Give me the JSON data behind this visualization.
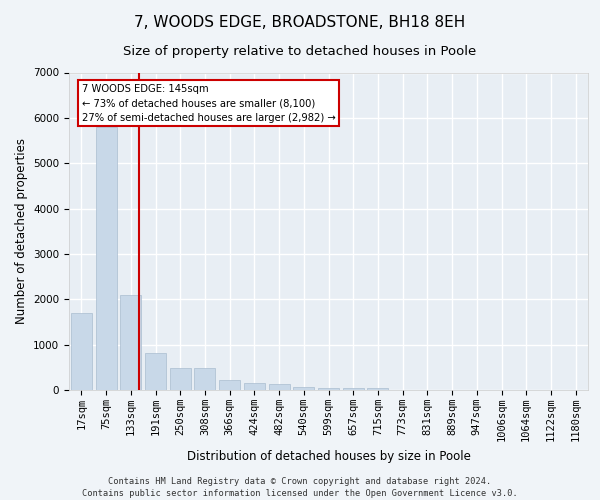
{
  "title": "7, WOODS EDGE, BROADSTONE, BH18 8EH",
  "subtitle": "Size of property relative to detached houses in Poole",
  "xlabel": "Distribution of detached houses by size in Poole",
  "ylabel": "Number of detached properties",
  "footnote1": "Contains HM Land Registry data © Crown copyright and database right 2024.",
  "footnote2": "Contains public sector information licensed under the Open Government Licence v3.0.",
  "annotation_line1": "7 WOODS EDGE: 145sqm",
  "annotation_line2": "← 73% of detached houses are smaller (8,100)",
  "annotation_line3": "27% of semi-detached houses are larger (2,982) →",
  "bar_color": "#c8d8e8",
  "bar_edge_color": "#aabdd0",
  "vline_color": "#cc0000",
  "vline_x": 2.35,
  "categories": [
    "17sqm",
    "75sqm",
    "133sqm",
    "191sqm",
    "250sqm",
    "308sqm",
    "366sqm",
    "424sqm",
    "482sqm",
    "540sqm",
    "599sqm",
    "657sqm",
    "715sqm",
    "773sqm",
    "831sqm",
    "889sqm",
    "947sqm",
    "1006sqm",
    "1064sqm",
    "1122sqm",
    "1180sqm"
  ],
  "values": [
    1700,
    5800,
    2100,
    820,
    490,
    490,
    210,
    155,
    125,
    75,
    55,
    45,
    38,
    0,
    0,
    0,
    0,
    0,
    0,
    0,
    0
  ],
  "ylim": [
    0,
    7000
  ],
  "yticks": [
    0,
    1000,
    2000,
    3000,
    4000,
    5000,
    6000,
    7000
  ],
  "background_color": "#f0f4f8",
  "plot_bg_color": "#e8eef4",
  "grid_color": "#ffffff",
  "title_fontsize": 11,
  "subtitle_fontsize": 9.5,
  "axis_label_fontsize": 8.5,
  "tick_fontsize": 7.5,
  "footnote_fontsize": 6.2
}
